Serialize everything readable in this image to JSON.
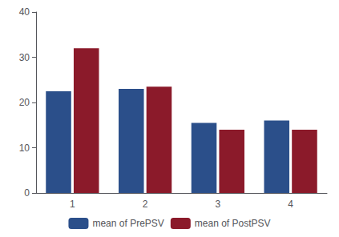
{
  "chart_data": {
    "type": "bar",
    "categories": [
      "1",
      "2",
      "3",
      "4"
    ],
    "series": [
      {
        "name": "mean of PrePSV",
        "color": "#2b4f8a",
        "values": [
          22.5,
          23.0,
          15.5,
          16.0
        ]
      },
      {
        "name": "mean of PostPSV",
        "color": "#8b1a2a",
        "values": [
          32.0,
          23.5,
          14.0,
          14.0
        ]
      }
    ],
    "ylim": [
      0,
      40
    ],
    "yticks": [
      0,
      10,
      20,
      30,
      40
    ],
    "grid": false,
    "legend": "bottom"
  }
}
